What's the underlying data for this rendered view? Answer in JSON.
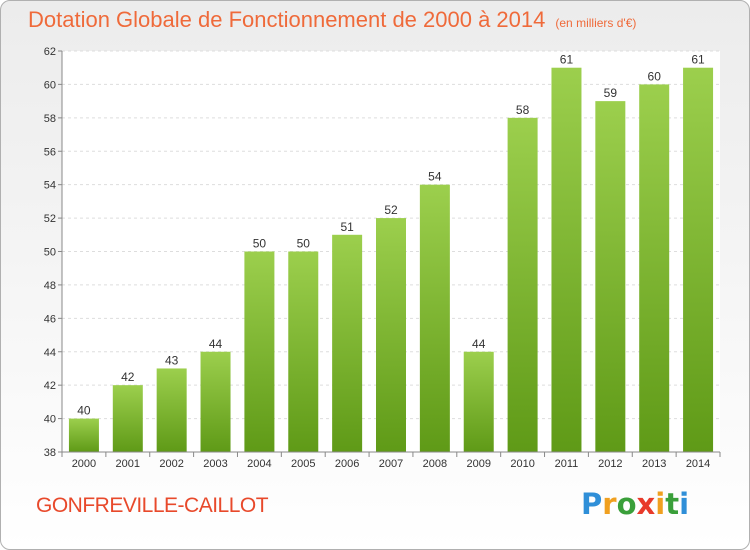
{
  "title": "Dotation Globale de Fonctionnement de 2000 à 2014",
  "unit": "(en milliers d'€)",
  "commune": "GONFREVILLE-CAILLOT",
  "logo": "Proxiti",
  "colors": {
    "title": "#ef6a3a",
    "commune": "#e8492b",
    "bar_light": "#9ccf4d",
    "bar_dark": "#5f9a17"
  },
  "chart_data": {
    "type": "bar",
    "title": "Dotation Globale de Fonctionnement de 2000 à 2014",
    "subtitle": "(en milliers d'€)",
    "categories": [
      "2000",
      "2001",
      "2002",
      "2003",
      "2004",
      "2005",
      "2006",
      "2007",
      "2008",
      "2009",
      "2010",
      "2011",
      "2012",
      "2013",
      "2014"
    ],
    "values": [
      40,
      42,
      43,
      44,
      50,
      50,
      51,
      52,
      54,
      44,
      58,
      61,
      59,
      60,
      61
    ],
    "yticks": [
      38,
      40,
      42,
      44,
      46,
      48,
      50,
      52,
      54,
      56,
      58,
      60,
      62
    ],
    "ylim": [
      38,
      62
    ],
    "grid": true,
    "legend": "none"
  }
}
